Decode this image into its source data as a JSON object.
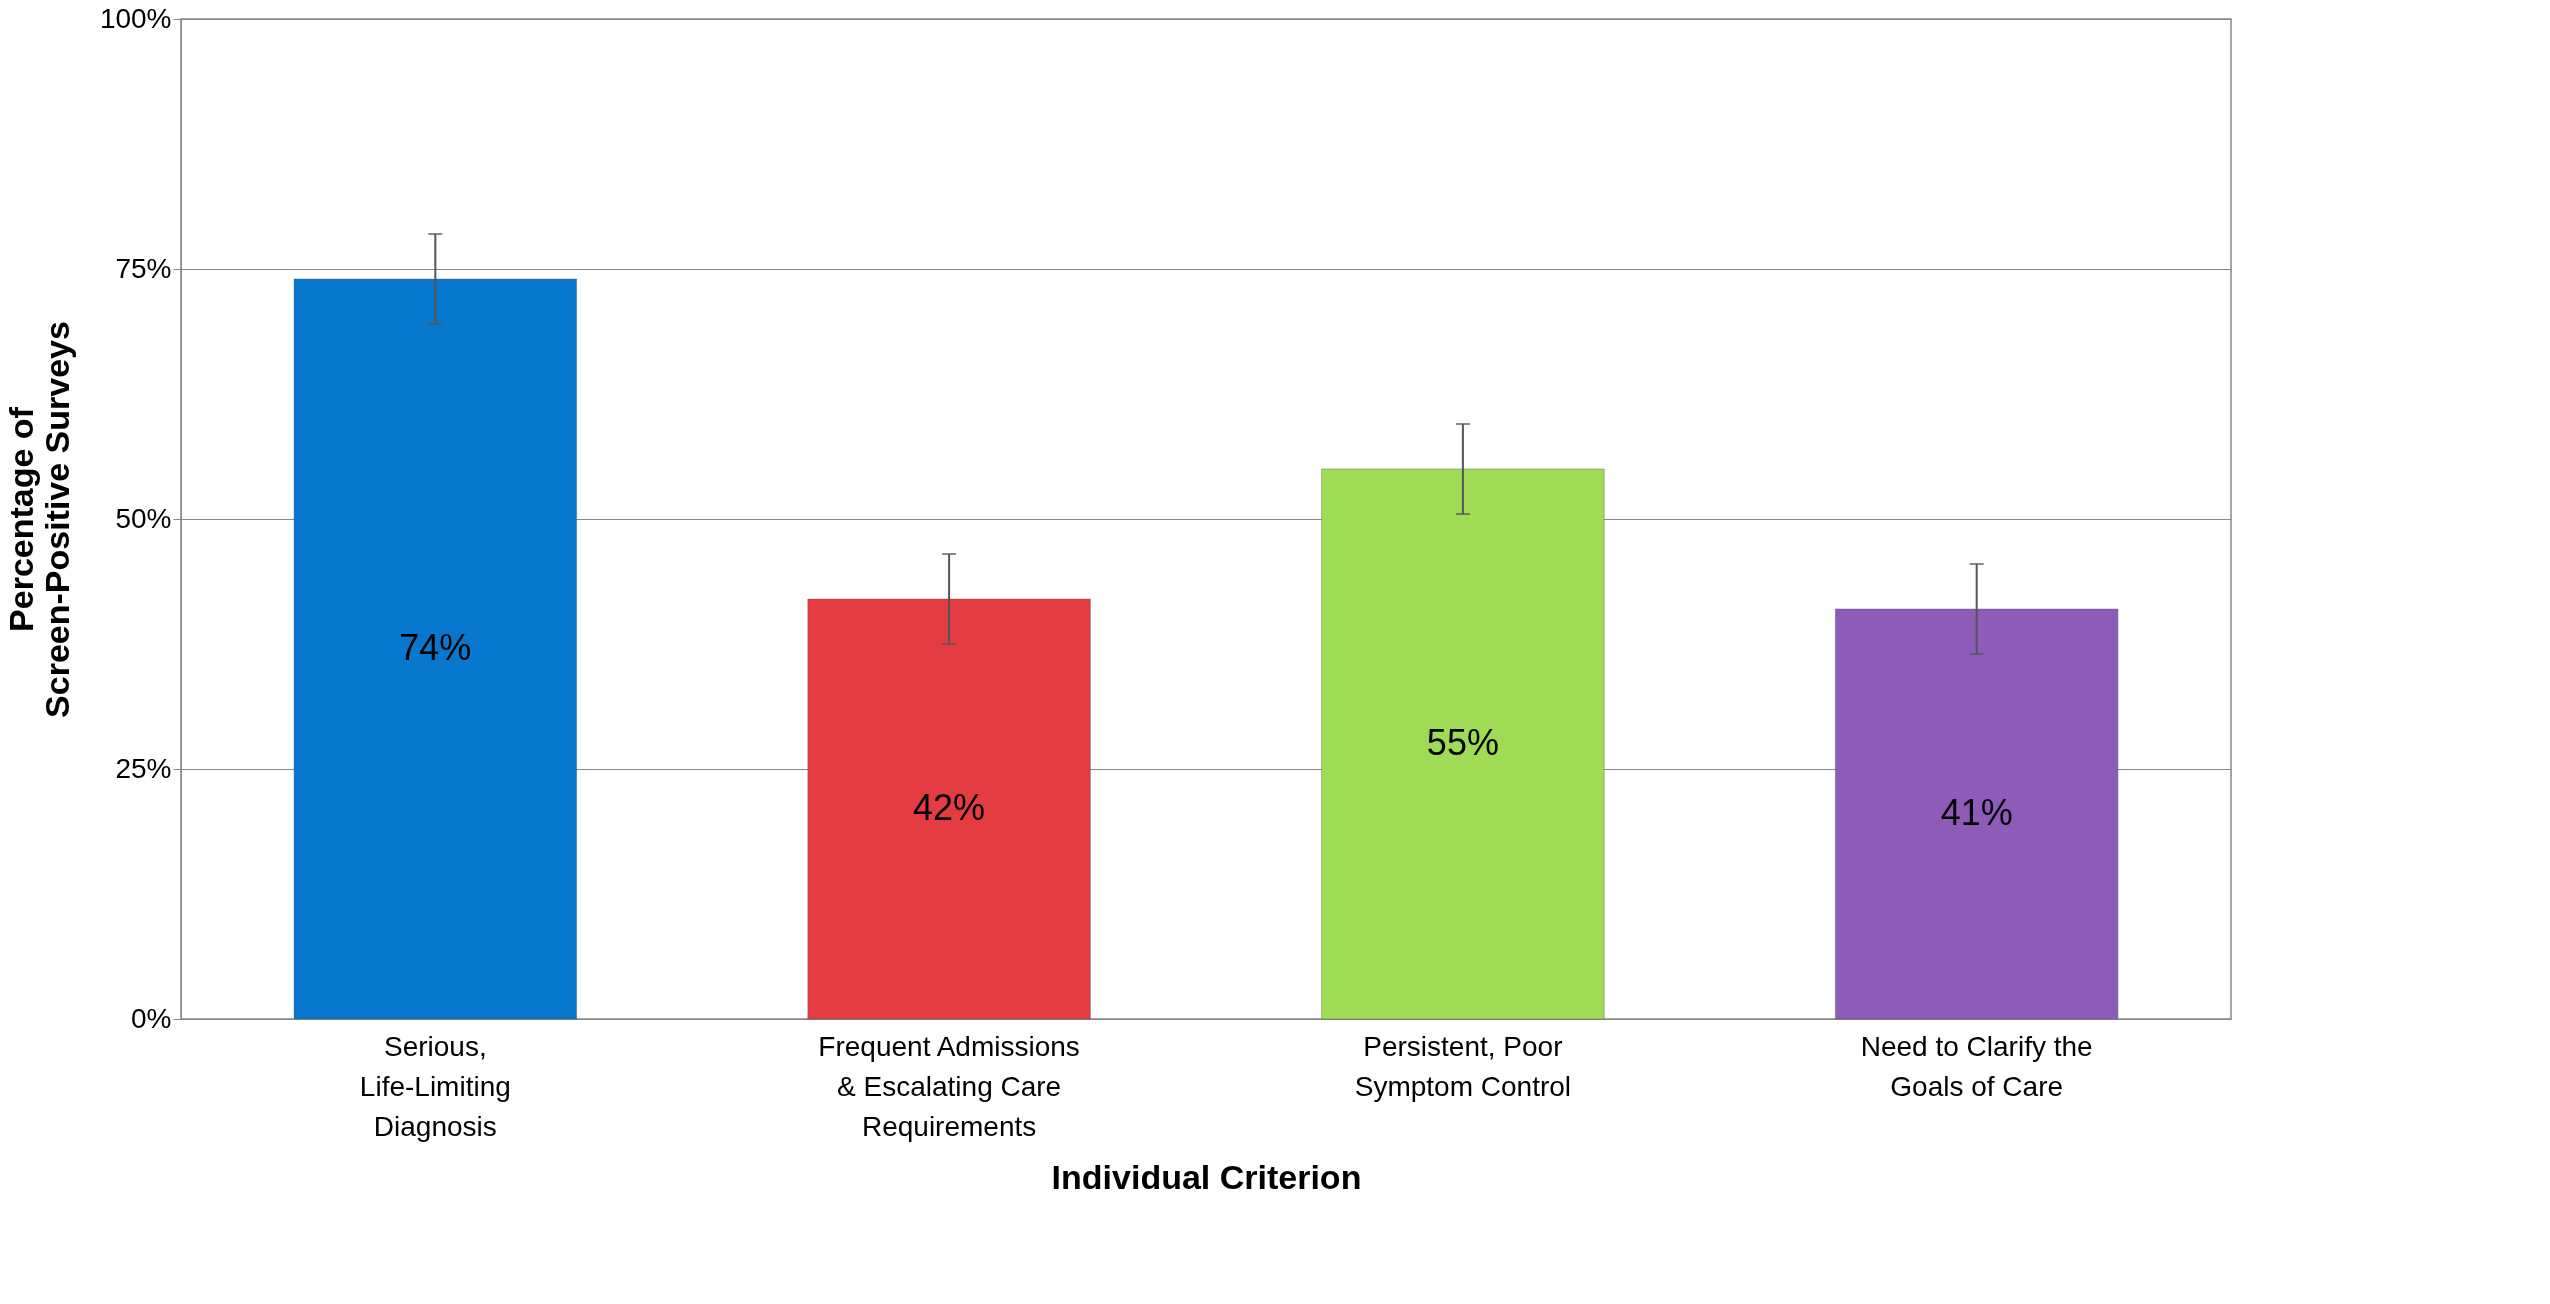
{
  "chart_data": {
    "type": "bar",
    "xlabel": "Individual Criterion",
    "ylabel": "Percentage of Screen-Positive Surveys",
    "categories": [
      "Serious, Life-Limiting Diagnosis",
      "Frequent Admissions & Escalating Care Requirements",
      "Persistent, Poor Symptom Control",
      "Need to Clarify the Goals of Care"
    ],
    "values": [
      74,
      42,
      55,
      41
    ],
    "colors": [
      "#0878cf",
      "#e33c43",
      "#9fdb55",
      "#8e5bb8"
    ],
    "errors": [
      4.5,
      4.5,
      4.5,
      4.5
    ],
    "value_labels": [
      "74%",
      "42%",
      "55%",
      "41%"
    ],
    "ylim": [
      0,
      100
    ],
    "yticks": [
      {
        "value": 0,
        "label": "0%"
      },
      {
        "value": 25,
        "label": "25%"
      },
      {
        "value": 50,
        "label": "50%"
      },
      {
        "value": 75,
        "label": "75%"
      },
      {
        "value": 100,
        "label": "100%"
      }
    ],
    "grid": "y",
    "legend": false
  }
}
